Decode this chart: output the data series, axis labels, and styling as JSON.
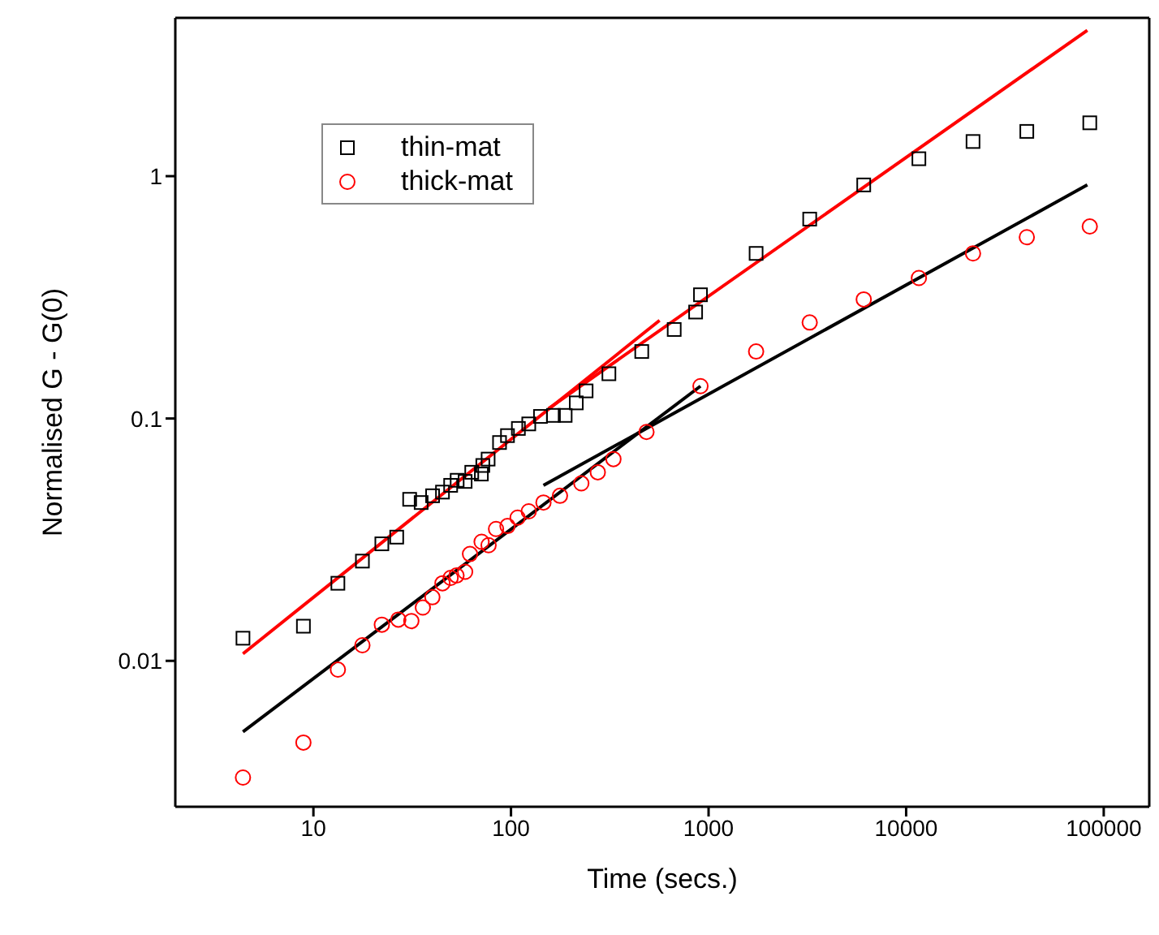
{
  "chart_data": {
    "type": "scatter",
    "xlabel": "Time (secs.)",
    "ylabel": "Normalised G - G(0)",
    "log": "xy",
    "xlim": [
      2,
      170000
    ],
    "ylim": [
      0.0025,
      4.5
    ],
    "xticks": [
      10,
      100,
      1000,
      10000,
      100000
    ],
    "yticks": [
      0.01,
      0.1,
      1
    ],
    "legend": "top left",
    "series": [
      {
        "name": "thin-mat",
        "color": "#000000",
        "marker": "square",
        "x": [
          4.4,
          8.9,
          13.3,
          17.7,
          22.2,
          26.4,
          30.7,
          35.1,
          40.1,
          45,
          49.5,
          53.4,
          58.6,
          63.3,
          70.8,
          72,
          76.6,
          87.5,
          96,
          109,
          123,
          141,
          164,
          188,
          214,
          240,
          313,
          459,
          670,
          860,
          910,
          1740,
          3250,
          6100,
          11600,
          21800,
          40800,
          85000
        ],
        "values": [
          0.0124,
          0.0139,
          0.0209,
          0.0258,
          0.0304,
          0.0324,
          0.0464,
          0.045,
          0.048,
          0.0497,
          0.053,
          0.0556,
          0.055,
          0.06,
          0.059,
          0.064,
          0.068,
          0.0796,
          0.085,
          0.091,
          0.095,
          0.102,
          0.103,
          0.103,
          0.116,
          0.13,
          0.153,
          0.189,
          0.233,
          0.275,
          0.324,
          0.48,
          0.665,
          0.92,
          1.18,
          1.39,
          1.53,
          1.66
        ]
      },
      {
        "name": "thick-mat",
        "color": "#ff0000",
        "marker": "circle",
        "x": [
          4.4,
          8.9,
          13.3,
          17.7,
          22.2,
          26.9,
          31.3,
          35.8,
          40,
          45,
          49.5,
          53,
          58.6,
          62,
          71,
          77,
          84,
          96,
          108,
          123,
          146,
          177,
          227,
          275,
          330,
          485,
          910,
          1740,
          3250,
          6100,
          11600,
          21800,
          40800,
          85000
        ],
        "values": [
          0.0033,
          0.0046,
          0.0092,
          0.0116,
          0.0141,
          0.0148,
          0.0146,
          0.0166,
          0.0183,
          0.0209,
          0.022,
          0.0225,
          0.0233,
          0.0276,
          0.031,
          0.03,
          0.035,
          0.036,
          0.039,
          0.0414,
          0.045,
          0.048,
          0.054,
          0.06,
          0.068,
          0.088,
          0.136,
          0.189,
          0.249,
          0.31,
          0.38,
          0.48,
          0.56,
          0.62
        ]
      },
      {
        "type": "line",
        "color": "#ff0000",
        "x": [
          4.4,
          565
        ],
        "values": [
          0.0107,
          0.254
        ]
      },
      {
        "type": "line",
        "color": "#ff0000",
        "x": [
          155,
          82600
        ],
        "values": [
          0.11,
          4.0
        ]
      },
      {
        "type": "line",
        "color": "#000000",
        "x": [
          4.4,
          910
        ],
        "values": [
          0.0051,
          0.136
        ]
      },
      {
        "type": "line",
        "color": "#000000",
        "x": [
          146,
          82600
        ],
        "values": [
          0.053,
          0.92
        ]
      }
    ]
  }
}
